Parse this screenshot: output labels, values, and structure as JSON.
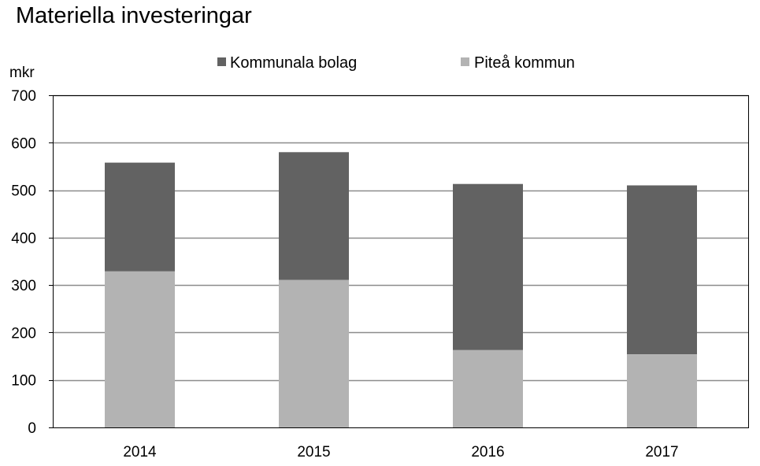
{
  "chart_data": {
    "type": "bar",
    "stacked": true,
    "title": "Materiella investeringar",
    "ylabel": "mkr",
    "xlabel": "",
    "ylim": [
      0,
      700
    ],
    "yticks": [
      0,
      100,
      200,
      300,
      400,
      500,
      600,
      700
    ],
    "grid": true,
    "legend_position": "top-center",
    "categories": [
      "2014",
      "2015",
      "2016",
      "2017"
    ],
    "series": [
      {
        "name": "Piteå kommun",
        "color": "#b3b3b3",
        "values": [
          329,
          311,
          163,
          154
        ]
      },
      {
        "name": "Kommunala bolag",
        "color": "#626262",
        "values": [
          229,
          269,
          350,
          356
        ]
      }
    ],
    "legend_order": [
      1,
      0
    ]
  }
}
